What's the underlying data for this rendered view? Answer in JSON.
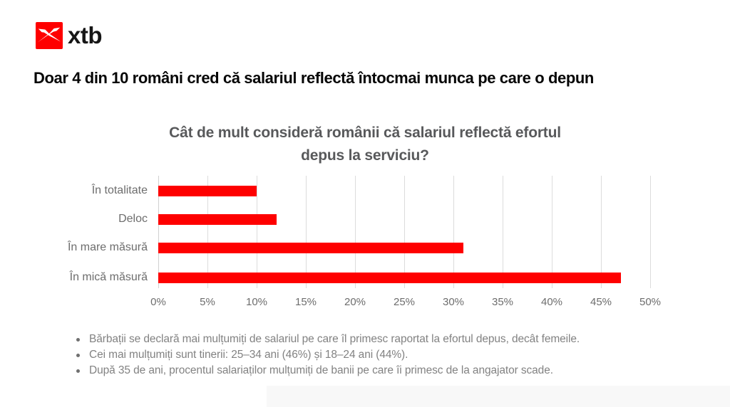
{
  "brand": {
    "logo_text": "xtb",
    "logo_color": "#fe0000",
    "logo_glyph": "swallow-icon"
  },
  "headline": "Doar 4 din 10 români cred că salariul reflectă întocmai munca pe care o depun",
  "chart_data": {
    "type": "bar",
    "orientation": "horizontal",
    "title": "Cât de mult consideră românii că salariul reflectă efortul depus la serviciu?",
    "title_lines": [
      "Cât de mult consideră românii că salariul reflectă efortul",
      "depus la serviciu?"
    ],
    "categories": [
      "În totalitate",
      "Deloc",
      "În mare măsură",
      "În mică măsură"
    ],
    "values": [
      10,
      12,
      31,
      47
    ],
    "unit": "%",
    "xlim": [
      0,
      50
    ],
    "x_tick_step": 5,
    "x_tick_labels": [
      "0%",
      "5%",
      "10%",
      "15%",
      "20%",
      "25%",
      "30%",
      "35%",
      "40%",
      "45%",
      "50%"
    ],
    "bar_color": "#fe0000",
    "grid": true,
    "legend": null
  },
  "bullets": [
    "Bărbații se declară mai mulțumiți de salariul pe care îl primesc raportat la efortul depus, decât femeile.",
    "Cei mai mulțumiți sunt tinerii: 25–34 ani (46%) și 18–24 ani (44%).",
    "După 35 de ani, procentul salariaților mulțumiți de banii pe care îi primesc de la angajator scade."
  ],
  "colors": {
    "accent_red": "#fe0000",
    "title_gray": "#58595b",
    "label_gray": "#6d6d6d",
    "bullet_gray": "#828282",
    "gridline_gray": "#dcdcdc"
  }
}
